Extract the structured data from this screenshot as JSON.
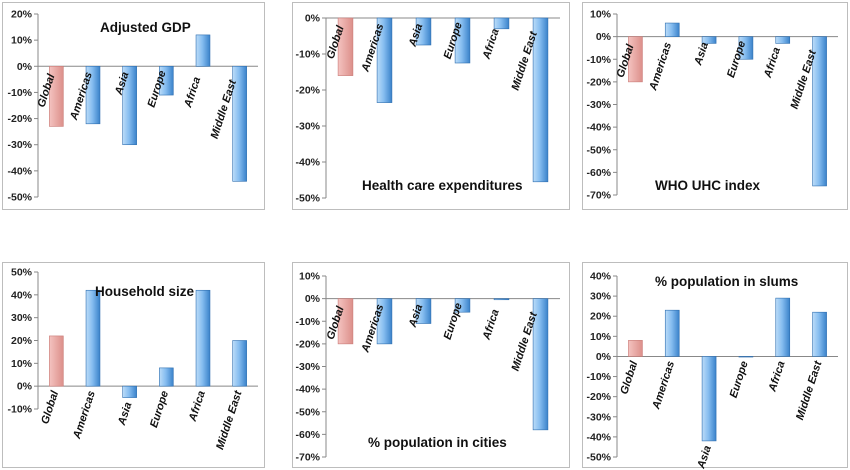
{
  "chart_data": [
    {
      "type": "bar",
      "title": "Adjusted GDP",
      "categories": [
        "Global",
        "Americas",
        "Asia",
        "Europe",
        "Africa",
        "Middle East"
      ],
      "values": [
        -23,
        -22,
        -30,
        -11,
        12,
        -44
      ],
      "ylim": [
        -50,
        20
      ],
      "yticks": [
        "20%",
        "10%",
        "0%",
        "-10%",
        "-20%",
        "-30%",
        "-40%",
        "-50%"
      ],
      "highlight": "Global"
    },
    {
      "type": "bar",
      "title": "Health care expenditures",
      "categories": [
        "Global",
        "Americas",
        "Asia",
        "Europe",
        "Africa",
        "Middle East"
      ],
      "values": [
        -16,
        -23.5,
        -7.5,
        -12.5,
        -3,
        -45.5
      ],
      "ylim": [
        -50,
        0
      ],
      "yticks": [
        "0%",
        "-10%",
        "-20%",
        "-30%",
        "-40%",
        "-50%"
      ],
      "highlight": "Global"
    },
    {
      "type": "bar",
      "title": "WHO UHC index",
      "categories": [
        "Global",
        "Americas",
        "Asia",
        "Europe",
        "Africa",
        "Middle East"
      ],
      "values": [
        -20,
        6,
        -3,
        -10,
        -3,
        -66
      ],
      "ylim": [
        -70,
        10
      ],
      "yticks": [
        "10%",
        "0%",
        "-10%",
        "-20%",
        "-30%",
        "-40%",
        "-50%",
        "-60%",
        "-70%"
      ],
      "highlight": "Global"
    },
    {
      "type": "bar",
      "title": "Household size",
      "categories": [
        "Global",
        "Americas",
        "Asia",
        "Europe",
        "Africa",
        "Middle East"
      ],
      "values": [
        22,
        42,
        -5,
        8,
        42,
        20
      ],
      "ylim": [
        -10,
        50
      ],
      "yticks": [
        "50%",
        "40%",
        "30%",
        "20%",
        "10%",
        "0%",
        "-10%"
      ],
      "highlight": "Global"
    },
    {
      "type": "bar",
      "title": "% population in cities",
      "categories": [
        "Global",
        "Americas",
        "Asia",
        "Europe",
        "Africa",
        "Middle East"
      ],
      "values": [
        -20,
        -20,
        -11,
        -6,
        -0.5,
        -58
      ],
      "ylim": [
        -70,
        10
      ],
      "yticks": [
        "10%",
        "0%",
        "-10%",
        "-20%",
        "-30%",
        "-40%",
        "-50%",
        "-60%",
        "-70%"
      ],
      "highlight": "Global"
    },
    {
      "type": "bar",
      "title": "%  population in slums",
      "categories": [
        "Global",
        "Americas",
        "Asia",
        "Europe",
        "Africa",
        "Middle East"
      ],
      "values": [
        8,
        23,
        -42,
        0,
        29,
        22
      ],
      "ylim": [
        -50,
        40
      ],
      "yticks": [
        "40%",
        "30%",
        "20%",
        "10%",
        "0%",
        "-10%",
        "-20%",
        "-30%",
        "-40%",
        "-50%"
      ],
      "highlight": "Global"
    }
  ],
  "colors": {
    "global_bar": "#e8a4a0",
    "global_bar_edge": "#c97a76",
    "region_bar_light": "#b9dbf7",
    "region_bar_dark": "#3f86cc",
    "region_bar_edge": "#2f6fb0"
  }
}
